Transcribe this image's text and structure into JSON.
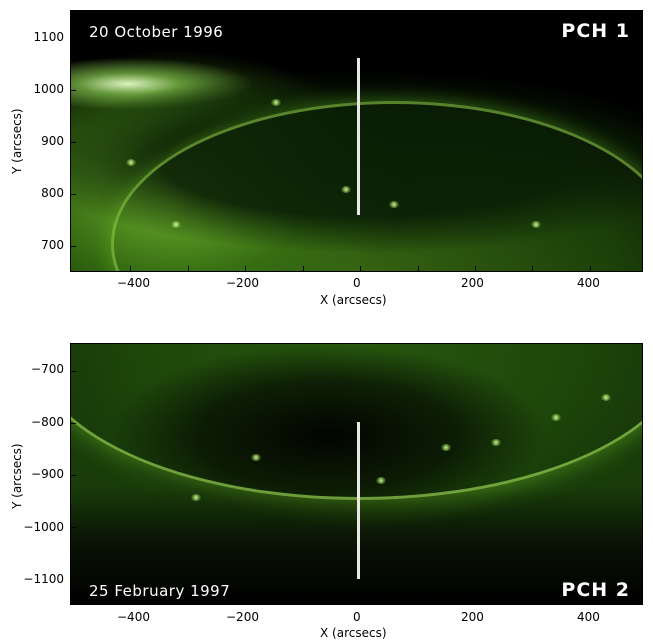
{
  "panels": [
    {
      "date_label": "20 October 1996",
      "region_label": "PCH 1",
      "y_ticks": [
        "1100",
        "1000",
        "900",
        "800",
        "700"
      ],
      "x_ticks": [
        "−400",
        "−200",
        "0",
        "200",
        "400"
      ],
      "x_axis_label": "X (arcsecs)",
      "y_axis_label": "Y (arcsecs)"
    },
    {
      "date_label": "25 February 1997",
      "region_label": "PCH 2",
      "y_ticks": [
        "−700",
        "−800",
        "−900",
        "−1000",
        "−1100"
      ],
      "x_ticks": [
        "−400",
        "−200",
        "0",
        "200",
        "400"
      ],
      "x_axis_label": "X (arcsecs)",
      "y_axis_label": "Y (arcsecs)"
    }
  ],
  "colors": {
    "corona_green": "#5fa828",
    "coronal_hole": "#0a1e05",
    "slit": "#e8e8e8",
    "overlay_text": "#ffffff"
  }
}
